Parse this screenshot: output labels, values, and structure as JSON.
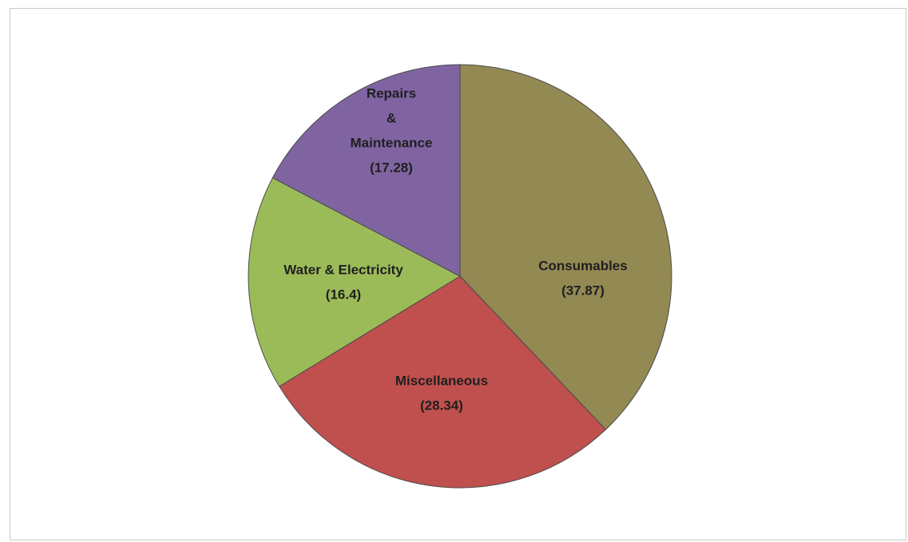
{
  "chart_data": {
    "type": "pie",
    "title": "",
    "start_angle_deg": 0,
    "direction": "clockwise",
    "legend": "none",
    "slices": [
      {
        "name": "Consumables",
        "value": 37.87,
        "value_label": "(37.87)",
        "label_lines": [
          "Consumables"
        ],
        "color": "#938953"
      },
      {
        "name": "Miscellaneous",
        "value": 28.34,
        "value_label": "(28.34)",
        "label_lines": [
          "Miscellaneous"
        ],
        "color": "#c0504d"
      },
      {
        "name": "Water & Electricity",
        "value": 16.4,
        "value_label": "(16.4)",
        "label_lines": [
          "Water & Electricity"
        ],
        "color": "#9bbb59"
      },
      {
        "name": "Repairs & Maintenance",
        "value": 17.28,
        "value_label": "(17.28)",
        "label_lines": [
          "Repairs",
          "&",
          "Maintenance"
        ],
        "color": "#8064a2"
      }
    ]
  }
}
